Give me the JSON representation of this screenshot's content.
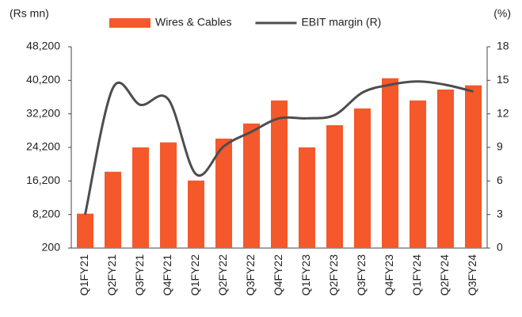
{
  "chart_data": {
    "type": "bar_line",
    "y_label": "(Rs mn)",
    "y2_label": "(%)",
    "categories": [
      "Q1FY21",
      "Q2FY21",
      "Q3FY21",
      "Q4FY21",
      "Q1FY22",
      "Q2FY22",
      "Q3FY22",
      "Q4FY22",
      "Q1FY23",
      "Q2FY23",
      "Q3FY23",
      "Q4FY23",
      "Q1FY24",
      "Q2FY24",
      "Q3FY24"
    ],
    "series": [
      {
        "name": "Wires & Cables",
        "type": "bar",
        "color": "#f5582b",
        "values": [
          8400,
          18400,
          24200,
          25400,
          16300,
          26300,
          29900,
          35400,
          24200,
          29500,
          33500,
          40700,
          35400,
          38000,
          39000
        ]
      },
      {
        "name": "EBIT margin (R)",
        "type": "line",
        "axis": "y2",
        "color": "#4d4d4d",
        "values": [
          3.0,
          14.3,
          12.8,
          13.3,
          6.6,
          9.1,
          10.4,
          11.6,
          11.6,
          11.9,
          13.9,
          14.6,
          14.9,
          14.6,
          14.0
        ]
      }
    ],
    "ylim": [
      200,
      48200
    ],
    "yticks": [
      200,
      {
        "value": 8200,
        "label": "8,200"
      },
      {
        "value": 16200,
        "label": "16,200"
      },
      {
        "value": 24200,
        "label": "24,200"
      },
      {
        "value": 32200,
        "label": "32,200"
      },
      {
        "value": 40200,
        "label": "40,200"
      },
      {
        "value": 48200,
        "label": "48,200"
      }
    ],
    "y2lim": [
      0,
      18
    ],
    "y2ticks": [
      0,
      3,
      6,
      9,
      12,
      15,
      18
    ],
    "grid": false,
    "legend": "top"
  }
}
